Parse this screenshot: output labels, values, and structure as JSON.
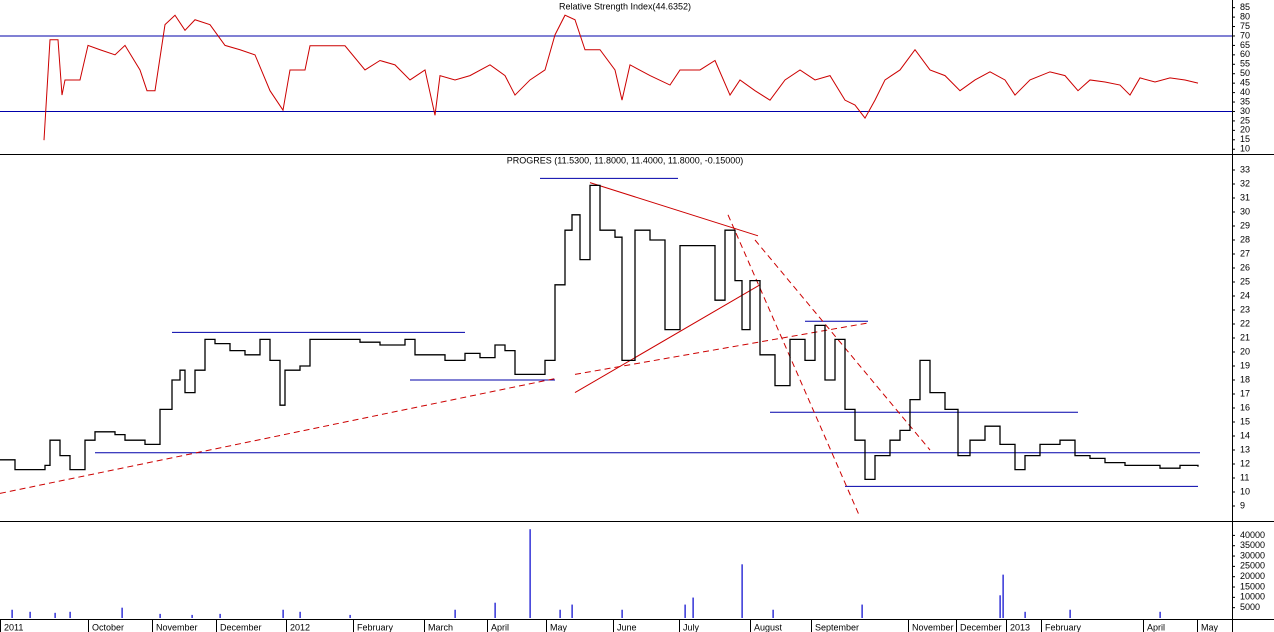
{
  "chart_data": [
    {
      "type": "line",
      "title": "Relative Strength Index(44.6352)",
      "color": "#cc0000",
      "xlim": [
        0,
        616
      ],
      "ylim": [
        8,
        88
      ],
      "yticks": [
        10,
        15,
        20,
        25,
        30,
        35,
        40,
        45,
        50,
        55,
        60,
        65,
        70,
        75,
        80,
        85
      ],
      "hlines": [
        70,
        30
      ],
      "hline_color": "#0000aa",
      "x": [
        22,
        25,
        29,
        31,
        32.5,
        40,
        44,
        50,
        57.5,
        62.5,
        70,
        73.5,
        77.5,
        82.5,
        87.5,
        92.5,
        97.5,
        105,
        112.5,
        120,
        127.5,
        135,
        141.5,
        145,
        152.5,
        155,
        167.5,
        172.5,
        182.5,
        190,
        197.5,
        205,
        212.5,
        217.5,
        220,
        227.5,
        235,
        245,
        252.5,
        257.5,
        265,
        272.5,
        277.5,
        282.5,
        287.5,
        292.5,
        300,
        307.5,
        311,
        315,
        325,
        335,
        340,
        350,
        357.5,
        365,
        370,
        377.5,
        385,
        392.5,
        400,
        407.5,
        415,
        422.5,
        427.5,
        432.5,
        437.5,
        442.5,
        450,
        457.5,
        465,
        472.5,
        480,
        487.5,
        495,
        502.5,
        507.5,
        515,
        525,
        532.5,
        539,
        545,
        552.5,
        560,
        565,
        570,
        577.5,
        585,
        592.5,
        599
      ],
      "values": [
        14.8,
        68,
        68,
        38.7,
        46.7,
        46.7,
        65,
        62.7,
        60,
        65,
        52,
        41,
        41,
        76,
        81,
        73,
        78.6,
        76,
        65,
        62.7,
        60,
        41,
        30.7,
        52,
        52,
        64.8,
        64.8,
        64.8,
        52,
        57,
        54.7,
        46.7,
        52,
        28,
        49,
        46.7,
        49,
        54.7,
        49,
        38.7,
        46.7,
        52,
        70.6,
        81,
        78.6,
        62.7,
        62.7,
        52,
        36,
        54.7,
        49,
        44,
        52,
        52,
        57,
        38.7,
        46.7,
        41,
        36,
        46.7,
        52,
        46.7,
        49,
        36,
        33.4,
        26.5,
        36,
        46.7,
        52,
        62.7,
        52,
        49,
        41,
        46.7,
        51,
        46.7,
        38.7,
        46.7,
        51,
        49,
        41,
        46.7,
        45.6,
        44,
        38.7,
        47.8,
        45.6,
        47.8,
        46.7,
        45
      ]
    },
    {
      "type": "price",
      "title": "PROGRES (11.5300, 11.8000, 11.4000, 11.8000, -0.15000)",
      "color": "#000000",
      "xlim": [
        0,
        616
      ],
      "ylim": [
        8,
        34
      ],
      "yticks": [
        9,
        10,
        11,
        12,
        13,
        14,
        15,
        16,
        17,
        18,
        19,
        20,
        21,
        22,
        23,
        24,
        25,
        26,
        27,
        28,
        29,
        30,
        31,
        32,
        33
      ],
      "x": [
        0,
        7.5,
        15,
        22.5,
        25,
        30,
        35,
        42.5,
        47.5,
        57.5,
        62.5,
        72.5,
        80,
        86,
        90,
        92.5,
        97.5,
        102.5,
        107.5,
        115,
        122.5,
        130,
        135,
        140,
        142.5,
        150,
        155,
        165,
        180,
        190,
        202.5,
        207.5,
        215,
        222.5,
        232.5,
        240,
        247.5,
        252.5,
        257.5,
        265,
        272.5,
        277.5,
        282.5,
        286,
        290,
        295,
        300,
        307.5,
        311,
        317.5,
        325,
        332.5,
        340,
        350,
        357.5,
        362.5,
        367.5,
        371,
        375,
        380,
        387.5,
        395,
        402.5,
        407.5,
        412.5,
        417.5,
        422.5,
        427.5,
        432.5,
        437.5,
        445,
        450,
        455,
        460,
        465,
        472.5,
        479,
        485,
        492.5,
        500,
        507.5,
        512.5,
        520,
        530,
        537.5,
        545,
        552.5,
        562.5,
        572.5,
        580,
        590,
        599
      ],
      "values": [
        12.3,
        11.6,
        11.6,
        11.9,
        13.7,
        12.6,
        11.6,
        13.7,
        14.3,
        14.1,
        13.7,
        13.4,
        15.9,
        18,
        18.7,
        17.1,
        18.7,
        20.9,
        20.6,
        20.1,
        19.8,
        20.9,
        19.4,
        16.2,
        18.7,
        19,
        20.9,
        20.9,
        20.7,
        20.5,
        20.9,
        19.8,
        19.8,
        19.4,
        19.9,
        19.6,
        20.5,
        20.1,
        18.4,
        18.4,
        19.4,
        24.8,
        28.7,
        29.8,
        26.6,
        31.9,
        28.7,
        28.2,
        19.4,
        28.7,
        28,
        21.6,
        27.6,
        27.6,
        23.7,
        28.7,
        25.1,
        21.6,
        25.1,
        19.8,
        17.6,
        20.9,
        19.4,
        21.9,
        18,
        20.9,
        15.9,
        13.7,
        10.9,
        12.6,
        13.7,
        14.4,
        16.6,
        19.4,
        17.1,
        15.9,
        12.6,
        13.7,
        14.7,
        13.4,
        11.6,
        12.6,
        13.4,
        13.7,
        12.6,
        12.4,
        12.1,
        11.9,
        11.9,
        11.7,
        11.9,
        11.8
      ],
      "lines": [
        {
          "x": [
            47.5,
            600
          ],
          "y": [
            12.8,
            12.8
          ],
          "color": "#0000aa"
        },
        {
          "x": [
            86,
            232.5
          ],
          "y": [
            21.4,
            21.4
          ],
          "color": "#0000aa"
        },
        {
          "x": [
            205,
            277.5
          ],
          "y": [
            18,
            18
          ],
          "color": "#0000aa"
        },
        {
          "x": [
            270,
            339
          ],
          "y": [
            32.4,
            32.4
          ],
          "color": "#0000aa"
        },
        {
          "x": [
            402.5,
            434
          ],
          "y": [
            22.2,
            22.2
          ],
          "color": "#0000aa"
        },
        {
          "x": [
            385,
            539
          ],
          "y": [
            15.7,
            15.7
          ],
          "color": "#0000aa"
        },
        {
          "x": [
            422.5,
            599
          ],
          "y": [
            10.4,
            10.4
          ],
          "color": "#0000aa"
        },
        {
          "x": [
            0,
            277.5
          ],
          "y": [
            9.9,
            18.1
          ],
          "color": "#cc0000",
          "dash": true
        },
        {
          "x": [
            287.5,
            435
          ],
          "y": [
            18.4,
            22.1
          ],
          "color": "#cc0000",
          "dash": true
        },
        {
          "x": [
            295,
            379
          ],
          "y": [
            32.1,
            28.3
          ],
          "color": "#cc0000"
        },
        {
          "x": [
            287.5,
            380
          ],
          "y": [
            17.1,
            24.8
          ],
          "color": "#cc0000"
        },
        {
          "x": [
            364,
            430
          ],
          "y": [
            29.8,
            8.2
          ],
          "color": "#cc0000",
          "dash": true
        },
        {
          "x": [
            377.5,
            465
          ],
          "y": [
            28,
            13
          ],
          "color": "#cc0000",
          "dash": true
        }
      ]
    },
    {
      "type": "volume",
      "color": "#0000cc",
      "xlim": [
        0,
        616
      ],
      "ylim": [
        0,
        46000
      ],
      "yticks": [
        5000,
        10000,
        15000,
        20000,
        25000,
        30000,
        35000,
        40000
      ],
      "x": [
        6,
        15,
        27.5,
        35,
        61,
        80,
        96,
        110,
        141.5,
        150,
        175,
        227.5,
        247.5,
        265,
        280,
        286,
        311,
        342.5,
        346.5,
        371,
        386.5,
        431,
        500,
        501.5,
        512.5,
        535,
        580
      ],
      "values": [
        4000,
        3000,
        2500,
        3000,
        5000,
        2000,
        1500,
        2000,
        4000,
        3000,
        1500,
        4000,
        7400,
        43000,
        4000,
        6500,
        4000,
        6500,
        9900,
        26000,
        4000,
        6500,
        11000,
        21000,
        3000,
        4000,
        3000
      ],
      "xticks": [
        {
          "value": 0,
          "label": "2011"
        },
        {
          "value": 44,
          "label": "October"
        },
        {
          "value": 76,
          "label": "November"
        },
        {
          "value": 108,
          "label": "December"
        },
        {
          "value": 143,
          "label": "2012"
        },
        {
          "value": 176.5,
          "label": "February"
        },
        {
          "value": 212,
          "label": "March"
        },
        {
          "value": 243.5,
          "label": "April"
        },
        {
          "value": 273,
          "label": "May"
        },
        {
          "value": 306.5,
          "label": "June"
        },
        {
          "value": 339.5,
          "label": "July"
        },
        {
          "value": 375,
          "label": "August"
        },
        {
          "value": 405.5,
          "label": "September"
        },
        {
          "value": 454,
          "label": "November"
        },
        {
          "value": 478,
          "label": "December"
        },
        {
          "value": 503,
          "label": "2013"
        },
        {
          "value": 520.5,
          "label": "February"
        },
        {
          "value": 571.5,
          "label": "April"
        },
        {
          "value": 598.5,
          "label": "May"
        }
      ]
    }
  ]
}
